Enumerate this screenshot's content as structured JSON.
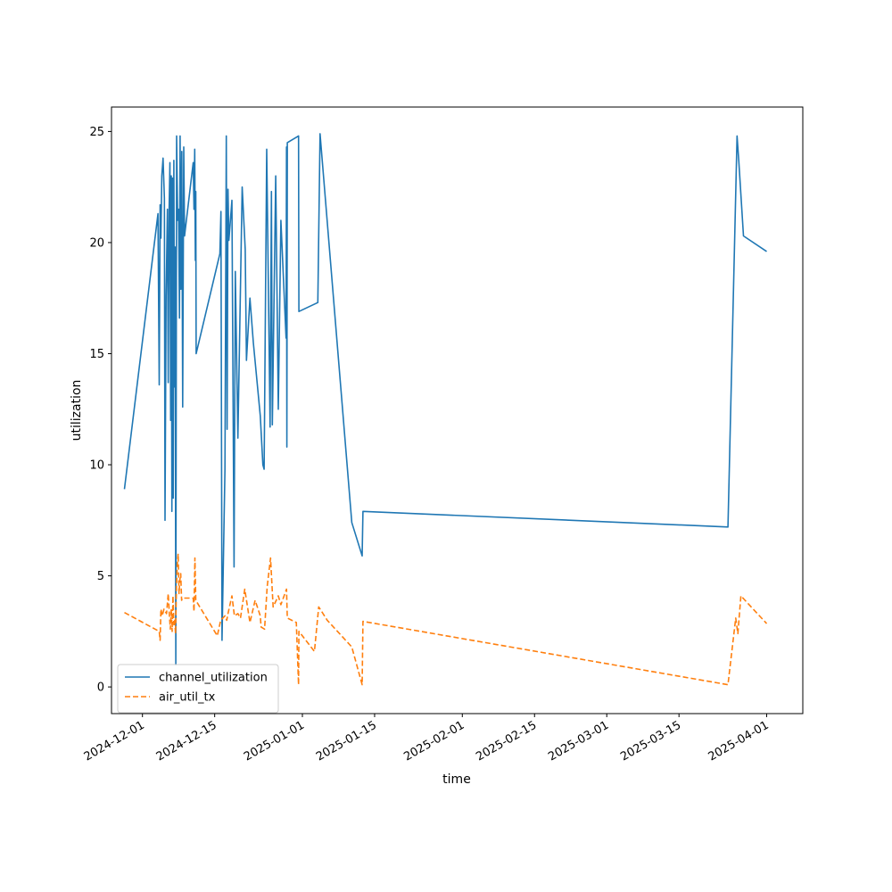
{
  "chart_data": {
    "type": "line",
    "title": "",
    "xlabel": "time",
    "ylabel": "utilization",
    "x_type": "date",
    "xlim": [
      "2024-11-25",
      "2025-04-08"
    ],
    "ylim": [
      -1.2,
      26.1
    ],
    "x_ticks": [
      "2024-12-01",
      "2024-12-15",
      "2025-01-01",
      "2025-01-15",
      "2025-02-01",
      "2025-02-15",
      "2025-03-01",
      "2025-03-15",
      "2025-04-01"
    ],
    "y_ticks": [
      0,
      5,
      10,
      15,
      20,
      25
    ],
    "grid": false,
    "legend_position": "lower-left",
    "series": [
      {
        "name": "channel_utilization",
        "color": "#1f77b4",
        "dash": "solid",
        "points": [
          [
            "2024-11-27T12:00",
            8.9
          ],
          [
            "2024-12-04T00:00",
            21.3
          ],
          [
            "2024-12-04T06:00",
            13.6
          ],
          [
            "2024-12-04T10:00",
            21.7
          ],
          [
            "2024-12-04T14:00",
            20.2
          ],
          [
            "2024-12-04T18:00",
            23.0
          ],
          [
            "2024-12-05T00:00",
            23.8
          ],
          [
            "2024-12-05T06:00",
            22.0
          ],
          [
            "2024-12-05T09:00",
            7.5
          ],
          [
            "2024-12-05T14:00",
            17.6
          ],
          [
            "2024-12-05T20:00",
            21.5
          ],
          [
            "2024-12-06T00:00",
            13.7
          ],
          [
            "2024-12-06T04:00",
            21.5
          ],
          [
            "2024-12-06T08:00",
            23.6
          ],
          [
            "2024-12-06T11:00",
            12.0
          ],
          [
            "2024-12-06T14:00",
            23.0
          ],
          [
            "2024-12-06T17:00",
            7.9
          ],
          [
            "2024-12-06T20:00",
            22.9
          ],
          [
            "2024-12-06T23:00",
            8.5
          ],
          [
            "2024-12-07T02:00",
            23.7
          ],
          [
            "2024-12-07T05:00",
            13.5
          ],
          [
            "2024-12-07T08:00",
            19.8
          ],
          [
            "2024-12-07T11:00",
            1.0
          ],
          [
            "2024-12-07T15:00",
            24.8
          ],
          [
            "2024-12-07T20:00",
            21.0
          ],
          [
            "2024-12-08T00:00",
            21.5
          ],
          [
            "2024-12-08T04:00",
            16.6
          ],
          [
            "2024-12-08T07:00",
            24.8
          ],
          [
            "2024-12-08T11:00",
            17.9
          ],
          [
            "2024-12-08T15:00",
            24.1
          ],
          [
            "2024-12-08T19:00",
            12.6
          ],
          [
            "2024-12-09T00:00",
            24.3
          ],
          [
            "2024-12-09T04:00",
            20.3
          ],
          [
            "2024-12-10T20:00",
            23.6
          ],
          [
            "2024-12-11T00:00",
            21.5
          ],
          [
            "2024-12-11T03:00",
            24.2
          ],
          [
            "2024-12-11T06:00",
            19.2
          ],
          [
            "2024-12-11T08:00",
            22.3
          ],
          [
            "2024-12-11T10:00",
            15.0
          ],
          [
            "2024-12-16T00:00",
            19.5
          ],
          [
            "2024-12-16T05:00",
            21.4
          ],
          [
            "2024-12-16T10:00",
            2.1
          ],
          [
            "2024-12-17T00:00",
            9.8
          ],
          [
            "2024-12-17T06:00",
            24.8
          ],
          [
            "2024-12-17T10:00",
            11.6
          ],
          [
            "2024-12-17T14:00",
            22.4
          ],
          [
            "2024-12-17T18:00",
            20.1
          ],
          [
            "2024-12-18T08:00",
            21.9
          ],
          [
            "2024-12-18T18:00",
            5.4
          ],
          [
            "2024-12-19T00:00",
            18.7
          ],
          [
            "2024-12-19T12:00",
            11.2
          ],
          [
            "2024-12-20T08:00",
            22.5
          ],
          [
            "2024-12-20T22:00",
            19.7
          ],
          [
            "2024-12-21T04:00",
            14.7
          ],
          [
            "2024-12-21T20:00",
            17.5
          ],
          [
            "2024-12-22T12:00",
            15.5
          ],
          [
            "2024-12-23T20:00",
            12.2
          ],
          [
            "2024-12-24T08:00",
            10.0
          ],
          [
            "2024-12-24T14:00",
            9.8
          ],
          [
            "2024-12-25T02:00",
            24.2
          ],
          [
            "2024-12-25T18:00",
            11.7
          ],
          [
            "2024-12-26T00:00",
            22.3
          ],
          [
            "2024-12-26T04:00",
            11.8
          ],
          [
            "2024-12-26T20:00",
            23.0
          ],
          [
            "2024-12-27T08:00",
            12.5
          ],
          [
            "2024-12-27T20:00",
            21.0
          ],
          [
            "2024-12-28T20:00",
            15.7
          ],
          [
            "2024-12-28T22:00",
            24.3
          ],
          [
            "2024-12-29T00:00",
            10.8
          ],
          [
            "2024-12-29T02:00",
            24.5
          ],
          [
            "2024-12-31T06:00",
            24.8
          ],
          [
            "2024-12-31T08:00",
            16.9
          ],
          [
            "2025-01-04T00:00",
            17.3
          ],
          [
            "2025-01-04T10:00",
            24.9
          ],
          [
            "2025-01-10T14:00",
            7.4
          ],
          [
            "2025-01-12T14:00",
            5.9
          ],
          [
            "2025-01-12T18:00",
            7.9
          ],
          [
            "2025-03-24T12:00",
            7.2
          ],
          [
            "2025-03-26T06:00",
            24.8
          ],
          [
            "2025-03-26T14:00",
            23.7
          ],
          [
            "2025-03-27T12:00",
            20.3
          ],
          [
            "2025-04-01T00:00",
            19.6
          ]
        ]
      },
      {
        "name": "air_util_tx",
        "color": "#ff7f0e",
        "dash": "dashed",
        "points": [
          [
            "2024-11-27T12:00",
            3.35
          ],
          [
            "2024-12-04T06:00",
            2.5
          ],
          [
            "2024-12-04T10:00",
            2.1
          ],
          [
            "2024-12-04T14:00",
            3.5
          ],
          [
            "2024-12-04T20:00",
            3.2
          ],
          [
            "2024-12-05T04:00",
            3.5
          ],
          [
            "2024-12-05T16:00",
            3.3
          ],
          [
            "2024-12-06T00:00",
            4.2
          ],
          [
            "2024-12-06T06:00",
            3.1
          ],
          [
            "2024-12-06T10:00",
            2.6
          ],
          [
            "2024-12-06T14:00",
            3.5
          ],
          [
            "2024-12-06T18:00",
            2.5
          ],
          [
            "2024-12-06T22:00",
            4.1
          ],
          [
            "2024-12-07T02:00",
            2.8
          ],
          [
            "2024-12-07T06:00",
            3.0
          ],
          [
            "2024-12-07T10:00",
            2.4
          ],
          [
            "2024-12-07T14:00",
            4.5
          ],
          [
            "2024-12-07T18:00",
            5.5
          ],
          [
            "2024-12-07T22:00",
            6.0
          ],
          [
            "2024-12-08T02:00",
            4.2
          ],
          [
            "2024-12-08T06:00",
            4.8
          ],
          [
            "2024-12-08T10:00",
            5.1
          ],
          [
            "2024-12-08T14:00",
            3.9
          ],
          [
            "2024-12-08T18:00",
            4.0
          ],
          [
            "2024-12-10T20:00",
            4.0
          ],
          [
            "2024-12-11T00:00",
            3.4
          ],
          [
            "2024-12-11T04:00",
            5.8
          ],
          [
            "2024-12-11T08:00",
            3.9
          ],
          [
            "2024-12-15T12:00",
            2.3
          ],
          [
            "2024-12-16T04:00",
            3.0
          ],
          [
            "2024-12-17T00:00",
            3.2
          ],
          [
            "2024-12-17T08:00",
            3.0
          ],
          [
            "2024-12-17T14:00",
            3.3
          ],
          [
            "2024-12-18T08:00",
            4.1
          ],
          [
            "2024-12-18T20:00",
            3.2
          ],
          [
            "2024-12-19T12:00",
            3.3
          ],
          [
            "2024-12-20T00:00",
            3.1
          ],
          [
            "2024-12-20T20:00",
            4.4
          ],
          [
            "2024-12-21T20:00",
            2.9
          ],
          [
            "2024-12-22T20:00",
            3.9
          ],
          [
            "2024-12-23T20:00",
            3.2
          ],
          [
            "2024-12-24T00:00",
            2.7
          ],
          [
            "2024-12-24T16:00",
            2.6
          ],
          [
            "2024-12-25T04:00",
            4.5
          ],
          [
            "2024-12-25T20:00",
            5.8
          ],
          [
            "2024-12-26T08:00",
            3.6
          ],
          [
            "2024-12-27T08:00",
            4.1
          ],
          [
            "2024-12-27T20:00",
            3.7
          ],
          [
            "2024-12-28T22:00",
            4.4
          ],
          [
            "2024-12-29T02:00",
            3.1
          ],
          [
            "2024-12-30T20:00",
            2.9
          ],
          [
            "2024-12-31T06:00",
            0.1
          ],
          [
            "2024-12-31T08:00",
            2.5
          ],
          [
            "2025-01-03T08:00",
            1.6
          ],
          [
            "2025-01-04T04:00",
            3.6
          ],
          [
            "2025-01-05T20:00",
            3.0
          ],
          [
            "2025-01-10T14:00",
            1.8
          ],
          [
            "2025-01-12T14:00",
            0.1
          ],
          [
            "2025-01-12T18:00",
            2.95
          ],
          [
            "2025-03-24T12:00",
            0.1
          ],
          [
            "2025-03-26T00:00",
            3.1
          ],
          [
            "2025-03-26T10:00",
            2.4
          ],
          [
            "2025-03-27T00:00",
            4.1
          ],
          [
            "2025-04-01T00:00",
            2.85
          ]
        ]
      }
    ]
  }
}
